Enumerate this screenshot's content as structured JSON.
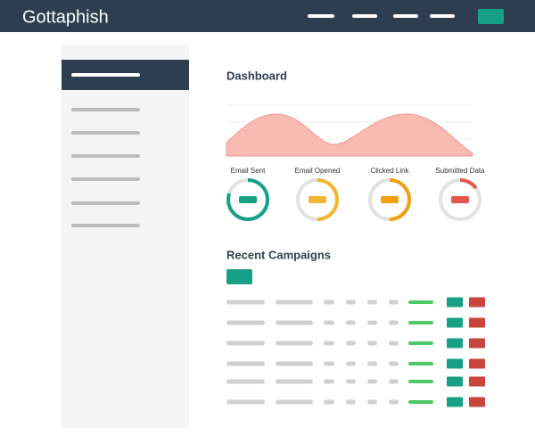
{
  "header": {
    "brand": "Gottaphish"
  },
  "dashboard": {
    "title": "Dashboard",
    "stats": [
      "Email Sent",
      "Email Opened",
      "Clicked Link",
      "Submitted Data"
    ]
  },
  "campaigns": {
    "title": "Recent Campaigns"
  }
}
